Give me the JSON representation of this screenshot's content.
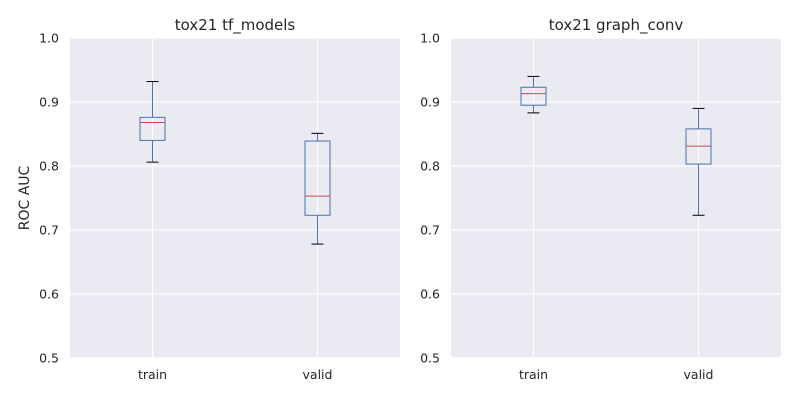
{
  "chart_data": [
    {
      "type": "box",
      "title": "tox21 tf_models",
      "xlabel": "",
      "ylabel": "ROC AUC",
      "categories": [
        "train",
        "valid"
      ],
      "ylim": [
        0.5,
        1.0
      ],
      "yticks": [
        "0.5",
        "0.6",
        "0.7",
        "0.8",
        "0.9",
        "1.0"
      ],
      "grid": true,
      "boxes": [
        {
          "name": "train",
          "whisker_low": 0.806,
          "q1": 0.84,
          "median": 0.868,
          "q3": 0.876,
          "whisker_high": 0.932
        },
        {
          "name": "valid",
          "whisker_low": 0.678,
          "q1": 0.723,
          "median": 0.753,
          "q3": 0.839,
          "whisker_high": 0.851
        }
      ]
    },
    {
      "type": "box",
      "title": "tox21 graph_conv",
      "xlabel": "",
      "ylabel": "",
      "categories": [
        "train",
        "valid"
      ],
      "ylim": [
        0.5,
        1.0
      ],
      "yticks": [
        "0.5",
        "0.6",
        "0.7",
        "0.8",
        "0.9",
        "1.0"
      ],
      "grid": true,
      "boxes": [
        {
          "name": "train",
          "whisker_low": 0.883,
          "q1": 0.895,
          "median": 0.913,
          "q3": 0.923,
          "whisker_high": 0.94
        },
        {
          "name": "valid",
          "whisker_low": 0.723,
          "q1": 0.803,
          "median": 0.831,
          "q3": 0.858,
          "whisker_high": 0.89
        }
      ]
    }
  ],
  "colors": {
    "background": "#eaeaf2",
    "grid": "#ffffff",
    "box": "#4c72b0",
    "median": "#c44e52",
    "cap": "#000000"
  }
}
